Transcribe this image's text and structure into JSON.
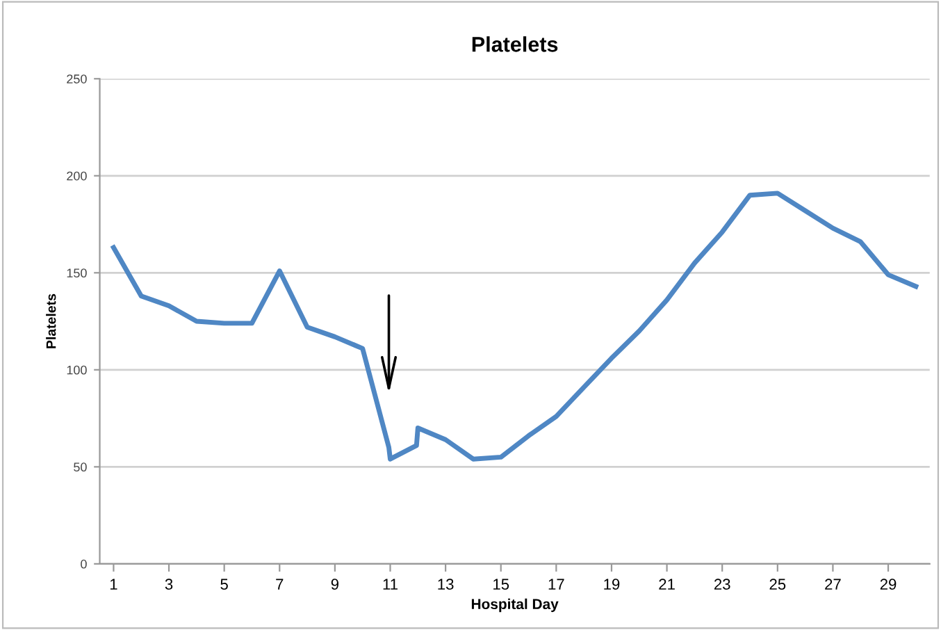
{
  "chart_data": {
    "type": "line",
    "title": "Platelets",
    "xlabel": "Hospital Day",
    "ylabel": "Platelets",
    "x": [
      1,
      2,
      3,
      4,
      5,
      6,
      7,
      8,
      9,
      10,
      10.95,
      11,
      11.95,
      12,
      13,
      14,
      15,
      16,
      17,
      18,
      19,
      20,
      21,
      22,
      23,
      24,
      25,
      26,
      27,
      28,
      29,
      30
    ],
    "series": [
      {
        "color": "#4f87c4",
        "values": [
          163,
          138,
          133,
          125,
          124,
          124,
          151,
          122,
          117,
          111,
          60,
          54,
          61,
          70,
          64,
          54,
          55,
          66,
          76,
          91,
          106,
          120,
          136,
          155,
          171,
          190,
          191,
          182,
          173,
          166,
          149,
          143
        ]
      }
    ],
    "xlim": [
      0.5,
      30.5
    ],
    "xticks": [
      1,
      3,
      5,
      7,
      9,
      11,
      13,
      15,
      17,
      19,
      21,
      23,
      25,
      27,
      29
    ],
    "ylim": [
      0,
      250
    ],
    "yticks": [
      0,
      50,
      100,
      150,
      200,
      250
    ],
    "grid": "y",
    "legend": false,
    "marker": "none",
    "line_style": "solid"
  }
}
